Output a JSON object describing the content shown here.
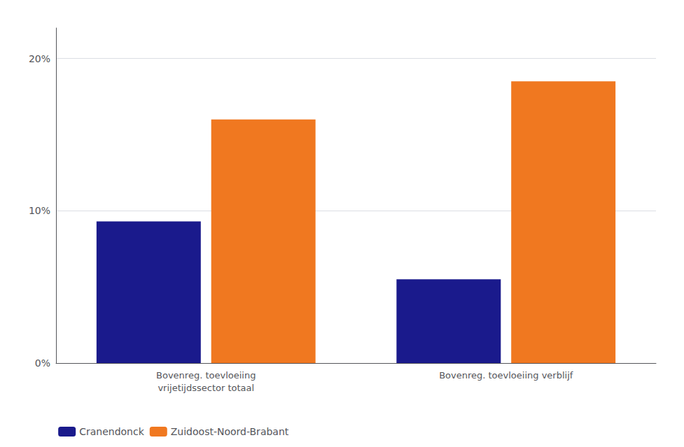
{
  "chart_data": {
    "type": "bar",
    "categories": [
      "Bovenreg. toevloeiing\nvrijetijdssector totaal",
      "Bovenreg. toevloeiing verblijf"
    ],
    "series": [
      {
        "name": "Cranendonck",
        "color": "#1a1a8c",
        "values": [
          0.093,
          0.055
        ]
      },
      {
        "name": "Zuidoost-Noord-Brabant",
        "color": "#f07820",
        "values": [
          0.16,
          0.185
        ]
      }
    ],
    "ylim": [
      0,
      0.22
    ],
    "yticks": [
      {
        "value": 0.0,
        "label": "0%"
      },
      {
        "value": 0.1,
        "label": "10%"
      },
      {
        "value": 0.2,
        "label": "20%"
      }
    ],
    "grid": true,
    "legend": "lower left"
  }
}
